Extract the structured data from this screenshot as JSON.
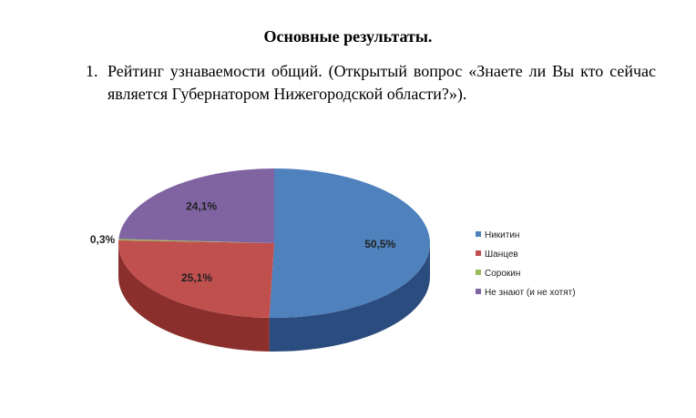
{
  "heading": "Основные результаты.",
  "item": {
    "number": "1.",
    "text": "Рейтинг узнаваемости общий. (Открытый вопрос «Знаете ли Вы кто сейчас является Губернатором Нижегородской области?»)."
  },
  "chart_data": {
    "type": "pie",
    "title": "",
    "three_d": true,
    "legend_position": "right",
    "series": [
      {
        "name": "Никитин",
        "value": 50.5,
        "label": "50,5%",
        "color": "#4f81bd",
        "side_color": "#2b4c7e"
      },
      {
        "name": "Шанцев",
        "value": 25.1,
        "label": "25,1%",
        "color": "#c0504d",
        "side_color": "#8b2f2c"
      },
      {
        "name": "Сорокин",
        "value": 0.3,
        "label": "0,3%",
        "color": "#9bbb59",
        "side_color": "#6b8a2c"
      },
      {
        "name": "Не знают (и не хотят)",
        "value": 24.1,
        "label": "24,1%",
        "color": "#8064a2",
        "side_color": "#5a4375"
      }
    ]
  }
}
